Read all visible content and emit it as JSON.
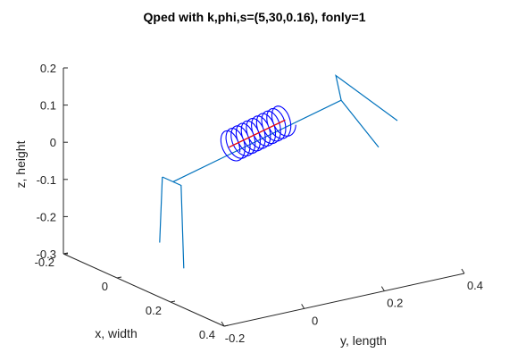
{
  "chart_data": {
    "type": "line",
    "title": "Qped with k,phi,s=(5,30,0.16), fonly=1",
    "xlabel": "x, width",
    "ylabel": "y, length",
    "zlabel": "z, height",
    "xlim": [
      -0.2,
      0.4
    ],
    "ylim": [
      -0.2,
      0.4
    ],
    "zlim": [
      -0.3,
      0.2
    ],
    "xticks": [
      "-0.2",
      "0",
      "0.2",
      "0.4"
    ],
    "yticks": [
      "-0.2",
      "0",
      "0.2",
      "0.4"
    ],
    "zticks": [
      "-0.3",
      "-0.2",
      "-0.1",
      "0",
      "0.1",
      "0.2"
    ],
    "grid": false,
    "legend": "none",
    "colors": {
      "frame": "#0072bd",
      "coil": "#0000ff",
      "core": "#ff0000",
      "axis": "#262626"
    },
    "coil": {
      "turns": 11,
      "radius": 0.04
    },
    "series": [
      {
        "values": [
          [
            0.03,
            -0.08,
            -0.06
          ],
          [
            0.03,
            0.34,
            0.06
          ]
        ]
      },
      {
        "values": [
          [
            -0.01,
            -0.08,
            -0.06
          ],
          [
            0.06,
            -0.08,
            -0.06
          ],
          [
            0.07,
            -0.08,
            -0.28
          ]
        ]
      },
      {
        "values": [
          [
            -0.01,
            -0.08,
            -0.06
          ],
          [
            -0.02,
            -0.08,
            -0.24
          ]
        ]
      },
      {
        "values": [
          [
            0.03,
            0.34,
            0.06
          ],
          [
            0.01,
            0.34,
            0.12
          ],
          [
            0.15,
            0.4,
            0.03
          ]
        ]
      },
      {
        "values": [
          [
            0.03,
            0.34,
            0.06
          ],
          [
            0.11,
            0.38,
            -0.05
          ]
        ]
      },
      {
        "values": [
          [
            0.03,
            0.06,
            -0.0
          ],
          [
            0.03,
            0.2,
            0.04
          ]
        ]
      }
    ]
  }
}
